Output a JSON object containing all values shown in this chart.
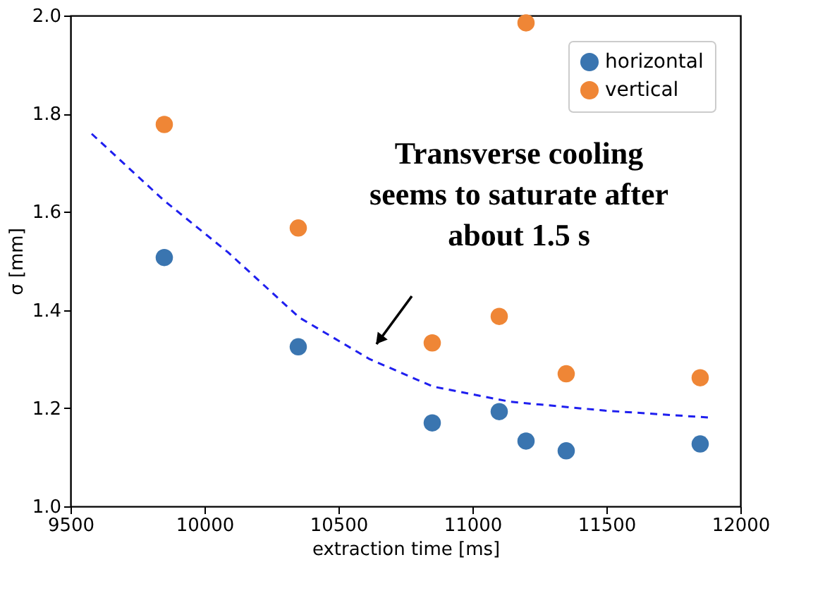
{
  "chart_data": {
    "type": "scatter",
    "xlabel": "extraction time [ms]",
    "ylabel": "σ [mm]",
    "xlim": [
      9500,
      12000
    ],
    "xticks": [
      9500,
      10000,
      10500,
      11000,
      11500,
      12000
    ],
    "ylim": [
      1.0,
      2.0
    ],
    "yticks": [
      {
        "value": 1.0,
        "label": "1.0"
      },
      {
        "value": 1.2,
        "label": "1.2"
      },
      {
        "value": 1.4,
        "label": "1.4"
      },
      {
        "value": 1.6,
        "label": "1.6"
      },
      {
        "value": 1.8,
        "label": "1.8"
      },
      {
        "value": 2.0,
        "label": "2.0"
      }
    ],
    "x": [
      9850,
      10350,
      10850,
      11100,
      11200,
      11350,
      11850
    ],
    "series": [
      {
        "name": "horizontal",
        "color": "#3a75b0",
        "values": [
          1.507,
          1.325,
          1.17,
          1.193,
          1.133,
          1.113,
          1.127
        ]
      },
      {
        "name": "vertical",
        "color": "#ef8636",
        "values": [
          1.778,
          1.567,
          1.333,
          1.387,
          1.985,
          1.27,
          1.262
        ]
      },
      {
        "type": "line",
        "color": "#1f1fef",
        "line_style": "dashed",
        "marker": "none",
        "x": [
          9579,
          9847,
          10089,
          10353,
          10616,
          10853,
          11142,
          11495,
          11879
        ],
        "values": [
          1.759,
          1.624,
          1.517,
          1.385,
          1.3,
          1.244,
          1.213,
          1.195,
          1.181
        ]
      }
    ],
    "annotations": [
      "Transverse cooling\nseems to saturate after\nabout 1.5 s"
    ],
    "legend": "top right",
    "grid": false,
    "marker": "circle"
  }
}
